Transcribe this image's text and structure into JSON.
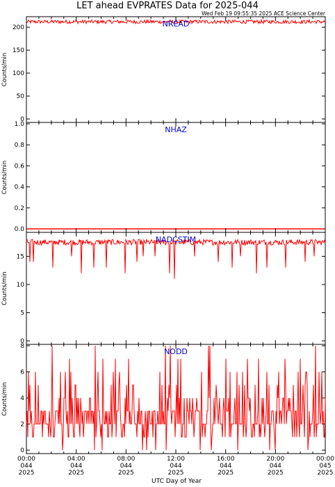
{
  "title": "LET ahead EVPRATES Data for 2025-044",
  "timestamp": "Wed Feb 19 09:55:35 2025 ACE Science Center",
  "colors": {
    "data": "#ff0000",
    "panel_label": "#0000cc",
    "axis": "#000000",
    "background": "#ffffff"
  },
  "chart_data": [
    {
      "type": "line",
      "name": "NREAD",
      "label": "NREAD",
      "ylabel": "Counts/min",
      "ylim": [
        0,
        220
      ],
      "yticks": [
        "0",
        "50",
        "100",
        "150",
        "200"
      ],
      "yticks_values": [
        0,
        50,
        100,
        150,
        200
      ],
      "xlim": [
        0,
        24
      ],
      "level": [
        208,
        216
      ],
      "dips": []
    },
    {
      "type": "line",
      "name": "NHAZ",
      "label": "NHAZ",
      "ylabel": "Counts/min",
      "ylim": [
        0,
        1
      ],
      "yticks": [
        "0.0",
        "0.2",
        "0.4",
        "0.6",
        "0.8",
        "1.0"
      ],
      "yticks_values": [
        0,
        0.2,
        0.4,
        0.6,
        0.8,
        1.0
      ],
      "xlim": [
        0,
        24
      ],
      "level": [
        0,
        0
      ],
      "dips": []
    },
    {
      "type": "line",
      "name": "NADCSTIM",
      "label": "NADCSTIM",
      "ylabel": "Counts/min",
      "ylim": [
        0,
        19
      ],
      "yticks": [
        "0",
        "5",
        "10",
        "15"
      ],
      "yticks_values": [
        0,
        5,
        10,
        15
      ],
      "xlim": [
        0,
        24
      ],
      "level": [
        17,
        18
      ],
      "dips": [
        {
          "x": 0.3,
          "y": 14
        },
        {
          "x": 0.55,
          "y": 14
        },
        {
          "x": 2.1,
          "y": 13
        },
        {
          "x": 3.6,
          "y": 15
        },
        {
          "x": 4.4,
          "y": 12
        },
        {
          "x": 5.4,
          "y": 13
        },
        {
          "x": 6.4,
          "y": 13
        },
        {
          "x": 7.9,
          "y": 12
        },
        {
          "x": 8.9,
          "y": 14
        },
        {
          "x": 9.4,
          "y": 15
        },
        {
          "x": 10.3,
          "y": 15
        },
        {
          "x": 11.5,
          "y": 12
        },
        {
          "x": 11.9,
          "y": 11
        },
        {
          "x": 13.5,
          "y": 15
        },
        {
          "x": 15.4,
          "y": 14
        },
        {
          "x": 16.5,
          "y": 13
        },
        {
          "x": 17.2,
          "y": 15
        },
        {
          "x": 18.5,
          "y": 12
        },
        {
          "x": 19.3,
          "y": 13
        },
        {
          "x": 20.8,
          "y": 13
        },
        {
          "x": 22.4,
          "y": 14
        },
        {
          "x": 23.1,
          "y": 15
        }
      ]
    },
    {
      "type": "line",
      "name": "NODD",
      "label": "NODD",
      "ylabel": "Counts/min",
      "ylim": [
        0,
        8
      ],
      "yticks": [
        "0",
        "2",
        "4",
        "6",
        "8"
      ],
      "yticks_values": [
        0,
        2,
        4,
        6,
        8
      ],
      "xlim": [
        0,
        24
      ],
      "values_range": [
        0,
        8
      ],
      "dips": []
    }
  ],
  "x_axis": {
    "xlabel": "UTC Day of Year",
    "ticks": [
      {
        "x": 0,
        "time": "00:00",
        "day": "044",
        "year": "2025"
      },
      {
        "x": 4,
        "time": "04:00",
        "day": "044",
        "year": "2025"
      },
      {
        "x": 8,
        "time": "08:00",
        "day": "044",
        "year": "2025"
      },
      {
        "x": 12,
        "time": "12:00",
        "day": "044",
        "year": "2025"
      },
      {
        "x": 16,
        "time": "16:00",
        "day": "044",
        "year": "2025"
      },
      {
        "x": 20,
        "time": "20:00",
        "day": "044",
        "year": "2025"
      },
      {
        "x": 24,
        "time": "00:00",
        "day": "045",
        "year": "2025"
      }
    ],
    "minor_ticks_per_hour": 1
  }
}
